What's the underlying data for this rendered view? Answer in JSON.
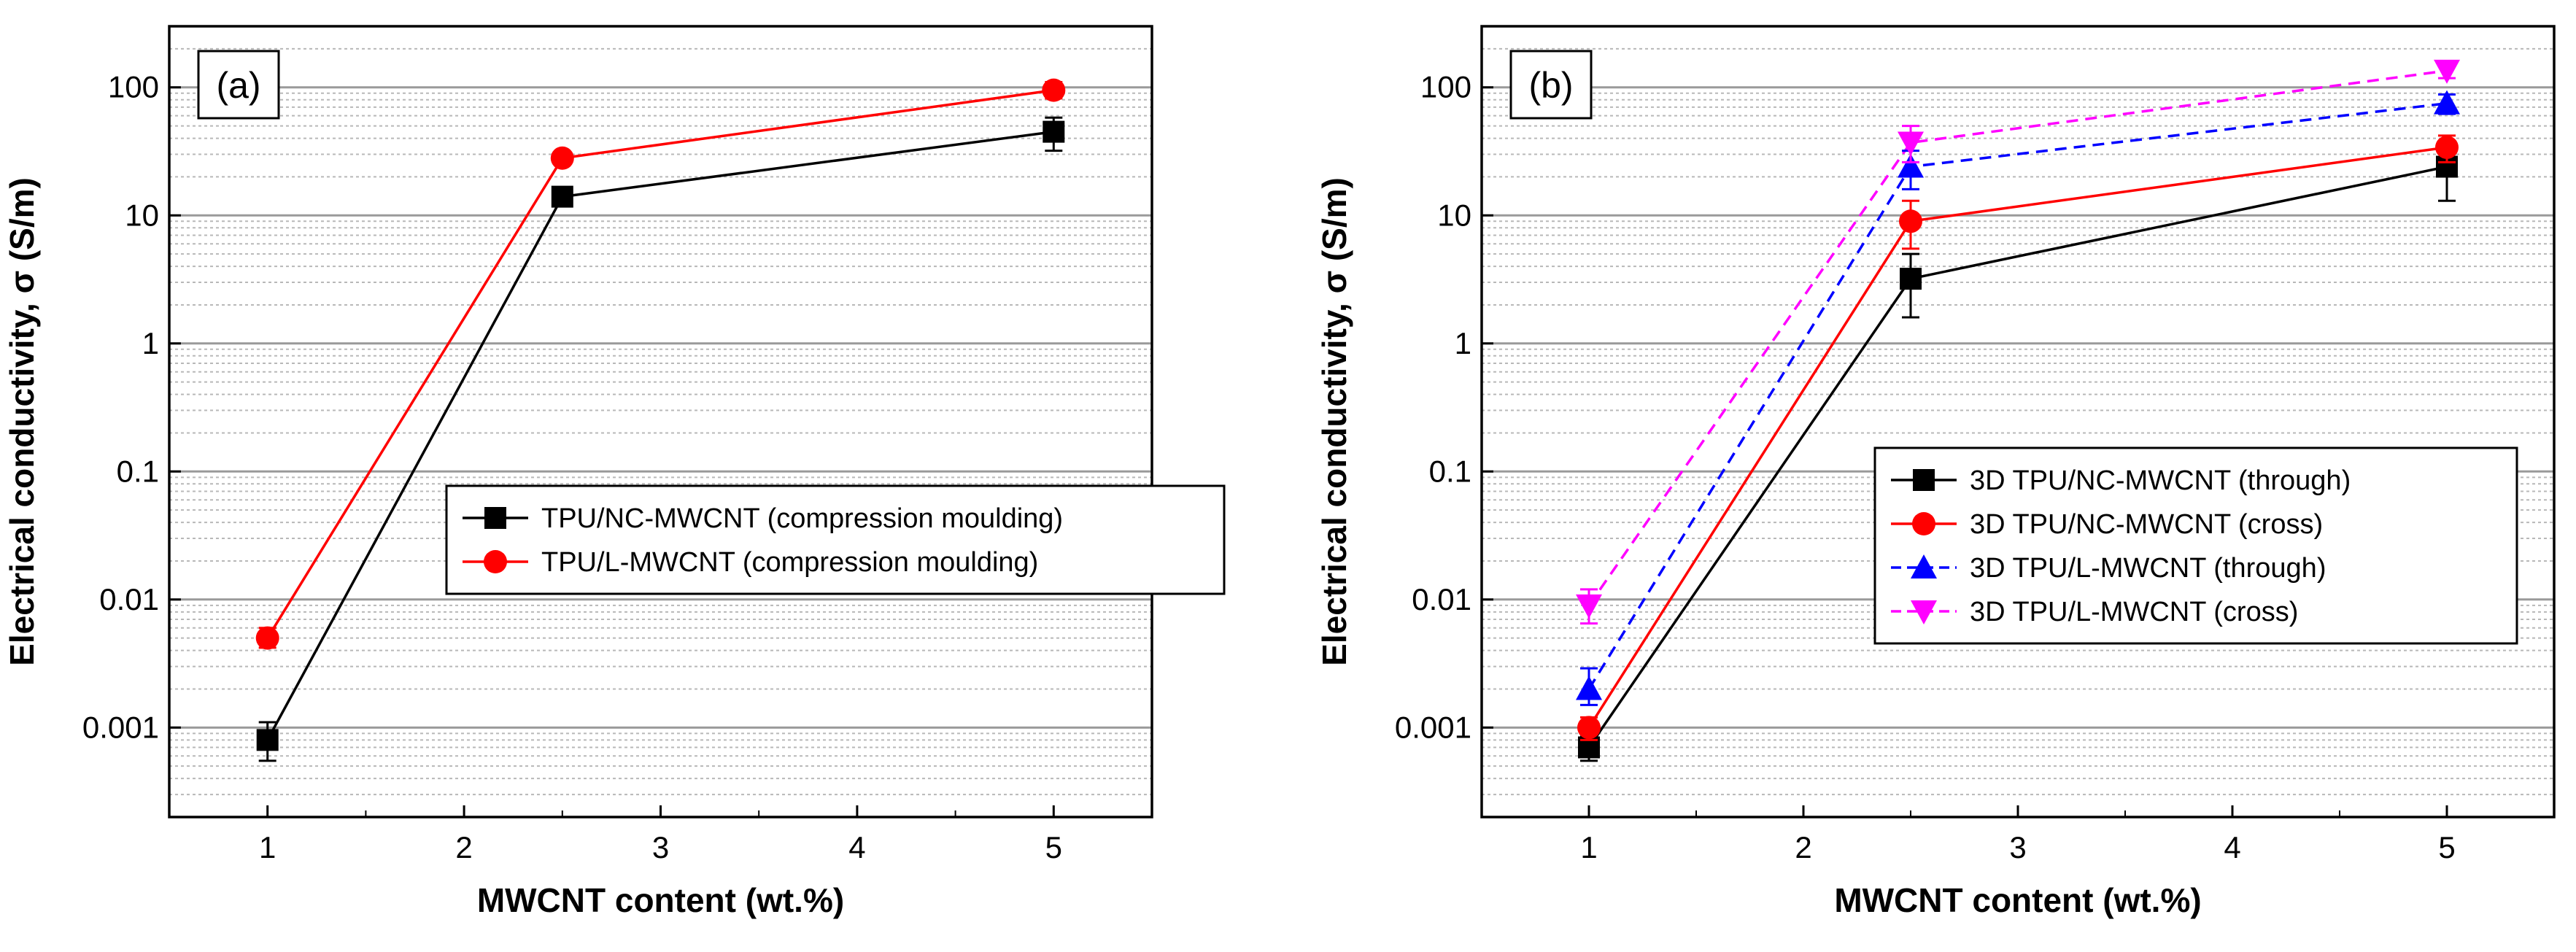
{
  "chart_data": [
    {
      "type": "line",
      "panel_label": "(a)",
      "xlabel": "MWCNT content (wt.%)",
      "ylabel": "Electrical conductivity, σ (S/m)",
      "xlim": [
        0.5,
        5.5
      ],
      "ylim": [
        0.0002,
        300
      ],
      "yscale": "log",
      "xticks": [
        1,
        2,
        3,
        4,
        5
      ],
      "xtick_labels": [
        "1",
        "2",
        "3",
        "4",
        "5"
      ],
      "yticks": [
        0.001,
        0.01,
        0.1,
        1,
        10,
        100
      ],
      "ytick_labels": [
        "0.001",
        "0.01",
        "0.1",
        "1",
        "10",
        "100"
      ],
      "grid": true,
      "legend_position": "center-right",
      "series": [
        {
          "name": "TPU/NC-MWCNT (compression moulding)",
          "color": "#000000",
          "marker": "square",
          "dash": false,
          "x": [
            1,
            2.5,
            5
          ],
          "y": [
            0.0008,
            14,
            45
          ],
          "err_low": [
            0.00055,
            13,
            32
          ],
          "err_high": [
            0.0011,
            15.5,
            58
          ]
        },
        {
          "name": "TPU/L-MWCNT (compression moulding)",
          "color": "#ff0000",
          "marker": "circle",
          "dash": false,
          "x": [
            1,
            2.5,
            5
          ],
          "y": [
            0.005,
            28,
            95
          ],
          "err_low": [
            0.0042,
            26,
            82
          ],
          "err_high": [
            0.006,
            30,
            110
          ]
        }
      ]
    },
    {
      "type": "line",
      "panel_label": "(b)",
      "xlabel": "MWCNT content (wt.%)",
      "ylabel": "Electrical conductivity, σ (S/m)",
      "xlim": [
        0.5,
        5.5
      ],
      "ylim": [
        0.0002,
        300
      ],
      "yscale": "log",
      "xticks": [
        1,
        2,
        3,
        4,
        5
      ],
      "xtick_labels": [
        "1",
        "2",
        "3",
        "4",
        "5"
      ],
      "yticks": [
        0.001,
        0.01,
        0.1,
        1,
        10,
        100
      ],
      "ytick_labels": [
        "0.001",
        "0.01",
        "0.1",
        "1",
        "10",
        "100"
      ],
      "grid": true,
      "legend_position": "center-right",
      "series": [
        {
          "name": "3D TPU/NC-MWCNT (through)",
          "color": "#000000",
          "marker": "square",
          "dash": false,
          "x": [
            1,
            2.5,
            5
          ],
          "y": [
            0.0007,
            3.2,
            24
          ],
          "err_low": [
            0.00055,
            1.6,
            13
          ],
          "err_high": [
            0.00085,
            5,
            35
          ]
        },
        {
          "name": "3D TPU/NC-MWCNT (cross)",
          "color": "#ff0000",
          "marker": "circle",
          "dash": false,
          "x": [
            1,
            2.5,
            5
          ],
          "y": [
            0.001,
            9,
            34
          ],
          "err_low": [
            0.0008,
            5.5,
            26
          ],
          "err_high": [
            0.0012,
            13,
            42
          ]
        },
        {
          "name": "3D TPU/L-MWCNT (through)",
          "color": "#0000ff",
          "marker": "triangle-up",
          "dash": true,
          "x": [
            1,
            2.5,
            5
          ],
          "y": [
            0.002,
            24,
            75
          ],
          "err_low": [
            0.0015,
            16,
            62
          ],
          "err_high": [
            0.0029,
            32,
            88
          ]
        },
        {
          "name": "3D TPU/L-MWCNT (cross)",
          "color": "#ff00ff",
          "marker": "triangle-down",
          "dash": true,
          "x": [
            1,
            2.5,
            5
          ],
          "y": [
            0.009,
            37,
            135
          ],
          "err_low": [
            0.0065,
            26,
            118
          ],
          "err_high": [
            0.012,
            50,
            152
          ]
        }
      ]
    }
  ]
}
